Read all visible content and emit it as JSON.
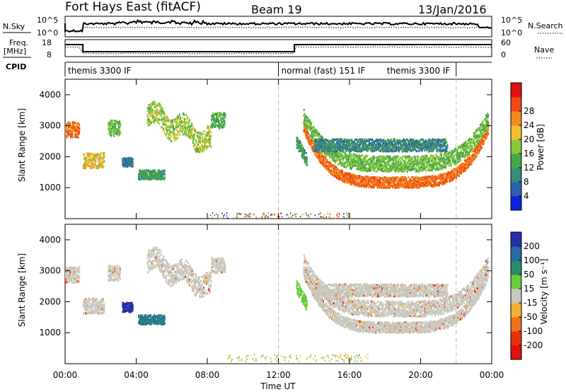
{
  "header": {
    "station": "Fort Hays East (fitACF)",
    "beam": "Beam 19",
    "date": "13/Jan/2016"
  },
  "noise_panel": {
    "left_label": "N.Sky",
    "left_ticks": [
      "10^5",
      "10^0"
    ],
    "right_label": "N.Search",
    "right_ticks": [
      "10^5",
      "10^0"
    ]
  },
  "freq_panel": {
    "left_label_1": "Freq.",
    "left_label_2": "[MHz]",
    "left_ticks": [
      "18",
      "8"
    ],
    "right_label": "Nave",
    "right_ticks": [
      "60",
      "0"
    ]
  },
  "cpid_panel": {
    "label": "CPID",
    "segments": [
      {
        "label": "themis 3300 IF",
        "start_hour": 0,
        "end_hour": 12
      },
      {
        "label": "normal (fast) 151 IF",
        "start_hour": 12,
        "end_hour": 22
      },
      {
        "label": "themis 3300 IF",
        "start_hour": 22,
        "end_hour": 24
      }
    ]
  },
  "power_panel": {
    "ylabel": "Slant Range [km]",
    "yticks": [
      "1000",
      "2000",
      "3000",
      "4000"
    ],
    "colorbar_label": "Power [dB]",
    "colorbar_ticks": [
      "4",
      "8",
      "12",
      "16",
      "20",
      "24",
      "28"
    ],
    "colors": [
      "#1020e0",
      "#2d5fb0",
      "#3a8a7a",
      "#45a845",
      "#8cc83c",
      "#f0c030",
      "#f08a20",
      "#f04a10",
      "#e01010"
    ]
  },
  "velocity_panel": {
    "ylabel": "Slant Range [km]",
    "yticks": [
      "1000",
      "2000",
      "3000",
      "4000"
    ],
    "colorbar_label": "Velocity [m s⁻¹]",
    "colorbar_ticks": [
      "200",
      "100",
      "50",
      "15",
      "-15",
      "-50",
      "-100",
      "-200"
    ],
    "colors": [
      "#2830a8",
      "#2a6aa8",
      "#2a8a6a",
      "#6acb3a",
      "#c8c8c0",
      "#f0b030",
      "#f07020",
      "#e83010",
      "#e01010"
    ]
  },
  "x_axis": {
    "ticks": [
      "00:00",
      "04:00",
      "08:00",
      "12:00",
      "16:00",
      "20:00",
      "00:00"
    ],
    "label": "Time UT"
  },
  "chart_data": {
    "type": "heatmap",
    "x_unit": "hours UT",
    "xlim": [
      0,
      24
    ],
    "ylim": [
      0,
      4500
    ],
    "y_unit": "km",
    "power_regions": [
      {
        "name": "early-patch",
        "x": [
          0.0,
          0.8
        ],
        "center_km": 2900,
        "width_km": 500,
        "db": 26
      },
      {
        "name": "arc-1",
        "x": [
          1.0,
          2.2
        ],
        "center_km": 1900,
        "width_km": 500,
        "db": 20
      },
      {
        "name": "arc-2",
        "x": [
          2.4,
          3.1
        ],
        "center_km": 2950,
        "width_km": 500,
        "db": 14
      },
      {
        "name": "patch-1",
        "x": [
          3.2,
          3.8
        ],
        "center_km": 1850,
        "width_km": 300,
        "db": 6
      },
      {
        "name": "patch-2",
        "x": [
          4.1,
          5.6
        ],
        "center_km": 1450,
        "width_km": 300,
        "db": 10
      },
      {
        "name": "band-main",
        "x": [
          4.6,
          8.2
        ],
        "center_km": 2800,
        "width_km": 700,
        "db": 16
      },
      {
        "name": "band-late",
        "x": [
          8.2,
          9.0
        ],
        "center_km": 3200,
        "width_km": 500,
        "db": 12
      },
      {
        "name": "descending-trace",
        "x": [
          13.0,
          13.6
        ],
        "center_km": 2200,
        "width_km": 400,
        "db": 10
      },
      {
        "name": "main-u",
        "x": [
          13.4,
          23.8
        ],
        "center_km": 1350,
        "width_km": 350,
        "db": 26
      },
      {
        "name": "upper-u",
        "x": [
          13.4,
          23.8
        ],
        "center_km": 2000,
        "width_km": 500,
        "db": 14
      },
      {
        "name": "upper-scatter",
        "x": [
          14.0,
          21.5
        ],
        "center_km": 2400,
        "width_km": 400,
        "db": 8
      }
    ],
    "velocity_notes": [
      {
        "x": [
          3.3,
          3.9
        ],
        "center_km": 1800,
        "velocity_ms": 100
      },
      {
        "x": [
          13.0,
          13.6
        ],
        "center_km": 2200,
        "velocity_ms": 50
      },
      {
        "x": [
          13.4,
          23.8
        ],
        "center_km": 1500,
        "velocity_ms": 0
      }
    ]
  }
}
